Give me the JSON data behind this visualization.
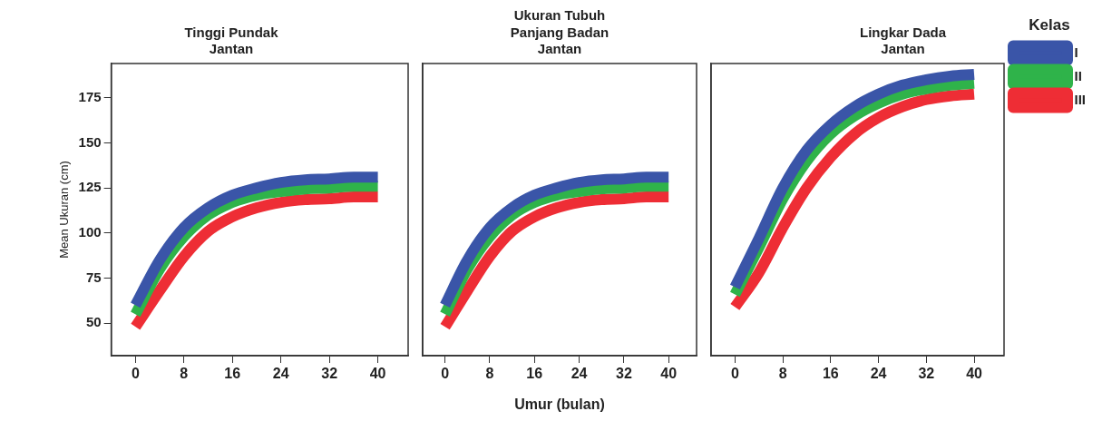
{
  "chart_data": [
    {
      "type": "line",
      "title": "Tinggi Pundak\nJantan",
      "ylabel": "Mean Ukuran (cm)",
      "x": [
        0,
        4,
        8,
        12,
        16,
        20,
        24,
        28,
        32,
        36,
        40
      ],
      "xlim": [
        -4,
        45
      ],
      "xticks": [
        0,
        8,
        16,
        24,
        32,
        40
      ],
      "ylim": [
        32,
        194
      ],
      "yticks": [
        50,
        75,
        100,
        125,
        150,
        175
      ],
      "marker": "none",
      "line_style": "solid",
      "grid": false,
      "legend": false,
      "series": [
        {
          "color": "#3a55a8",
          "values": [
            60,
            85,
            103,
            114,
            121,
            125,
            128,
            129.5,
            130,
            131,
            131
          ]
        },
        {
          "color": "#2fb34a",
          "values": [
            55,
            80,
            98,
            110,
            117,
            121,
            123,
            124.5,
            125,
            126,
            126
          ]
        },
        {
          "color": "#ee2d35",
          "values": [
            48,
            68,
            87,
            101,
            109,
            114,
            117,
            118.5,
            119,
            120,
            120
          ]
        }
      ]
    },
    {
      "type": "line",
      "title": "Panjang Badan\nJantan",
      "xlabel": "Umur (bulan)",
      "annotations": [
        "Ukuran Tubuh"
      ],
      "x": [
        0,
        4,
        8,
        12,
        16,
        20,
        24,
        28,
        32,
        36,
        40
      ],
      "xlim": [
        -4,
        45
      ],
      "xticks": [
        0,
        8,
        16,
        24,
        32,
        40
      ],
      "ylim": [
        32,
        194
      ],
      "yticks": [
        50,
        75,
        100,
        125,
        150,
        175
      ],
      "tick_labels": "x",
      "marker": "none",
      "line_style": "solid",
      "grid": false,
      "legend": false,
      "series": [
        {
          "color": "#3a55a8",
          "values": [
            60,
            85,
            103,
            114,
            121,
            125,
            128,
            129.5,
            130,
            131,
            131
          ]
        },
        {
          "color": "#2fb34a",
          "values": [
            55,
            80,
            98,
            110,
            117,
            121,
            123,
            124.5,
            125,
            126,
            126
          ]
        },
        {
          "color": "#ee2d35",
          "values": [
            48,
            68,
            87,
            101,
            109,
            114,
            117,
            118.5,
            119,
            120,
            120
          ]
        }
      ]
    },
    {
      "type": "line",
      "title": "Lingkar Dada\nJantan",
      "legend_title": "Kelas",
      "x": [
        0,
        4,
        8,
        12,
        16,
        20,
        24,
        28,
        32,
        36,
        40
      ],
      "xlim": [
        -4,
        45
      ],
      "xticks": [
        0,
        8,
        16,
        24,
        32,
        40
      ],
      "ylim": [
        32,
        194
      ],
      "yticks": [
        50,
        75,
        100,
        125,
        150,
        175
      ],
      "tick_labels": "x",
      "marker": "none",
      "line_style": "solid",
      "grid": false,
      "legend": "top right",
      "series": [
        {
          "name": "I",
          "color": "#3a55a8",
          "values": [
            70,
            97,
            125,
            146,
            160,
            170,
            177,
            182,
            185,
            187,
            188
          ]
        },
        {
          "name": "II",
          "color": "#2fb34a",
          "values": [
            66,
            92,
            119,
            140,
            155,
            165,
            172,
            177,
            180,
            182,
            183
          ]
        },
        {
          "name": "III",
          "color": "#ee2d35",
          "values": [
            59,
            78,
            103,
            125,
            142,
            155,
            164,
            170,
            174,
            176,
            177
          ]
        }
      ]
    }
  ]
}
